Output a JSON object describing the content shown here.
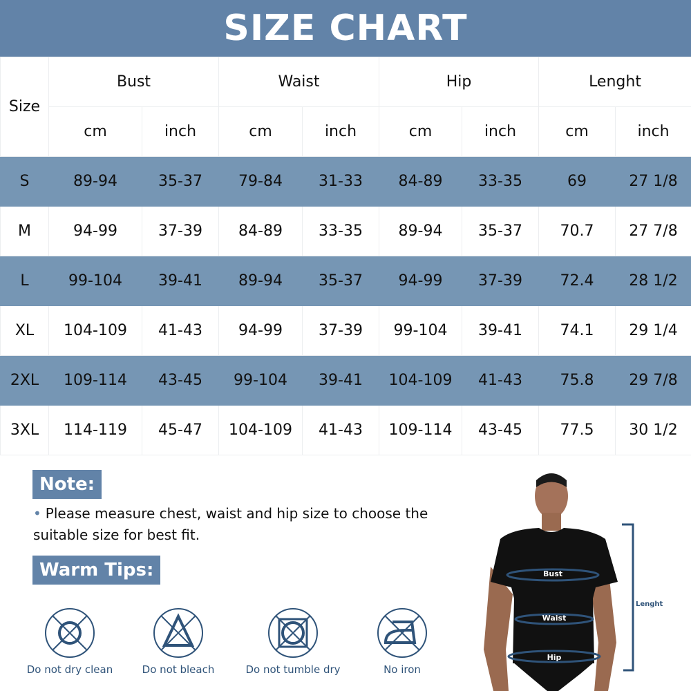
{
  "title": "SIZE CHART",
  "header": {
    "size": "Size",
    "groups": [
      "Bust",
      "Waist",
      "Hip",
      "Lenght"
    ],
    "units": [
      "cm",
      "inch",
      "cm",
      "inch",
      "cm",
      "inch",
      "cm",
      "inch"
    ]
  },
  "rows": [
    [
      "S",
      "89-94",
      "35-37",
      "79-84",
      "31-33",
      "84-89",
      "33-35",
      "69",
      "27 1/8"
    ],
    [
      "M",
      "94-99",
      "37-39",
      "84-89",
      "33-35",
      "89-94",
      "35-37",
      "70.7",
      "27 7/8"
    ],
    [
      "L",
      "99-104",
      "39-41",
      "89-94",
      "35-37",
      "94-99",
      "37-39",
      "72.4",
      "28 1/2"
    ],
    [
      "XL",
      "104-109",
      "41-43",
      "94-99",
      "37-39",
      "99-104",
      "39-41",
      "74.1",
      "29 1/4"
    ],
    [
      "2XL",
      "109-114",
      "43-45",
      "99-104",
      "39-41",
      "104-109",
      "41-43",
      "75.8",
      "29 7/8"
    ],
    [
      "3XL",
      "114-119",
      "45-47",
      "104-109",
      "41-43",
      "109-114",
      "43-45",
      "77.5",
      "30 1/2"
    ]
  ],
  "note": {
    "heading": "Note:",
    "text": "Please measure chest, waist and hip size to choose the suitable size for best fit."
  },
  "tips": {
    "heading": "Warm Tips:",
    "items": [
      {
        "icon": "no-dry-clean-icon",
        "label": "Do not dry clean"
      },
      {
        "icon": "no-bleach-icon",
        "label": "Do not bleach"
      },
      {
        "icon": "no-tumble-dry-icon",
        "label": "Do not tumble dry"
      },
      {
        "icon": "no-iron-icon",
        "label": "No iron"
      }
    ]
  },
  "figure": {
    "bust": "Bust",
    "waist": "Waist",
    "hip": "Hip",
    "length": "Lenght"
  },
  "colors": {
    "header": "#6283a8",
    "stripe": "#7696b4",
    "icon": "#2f5379"
  }
}
